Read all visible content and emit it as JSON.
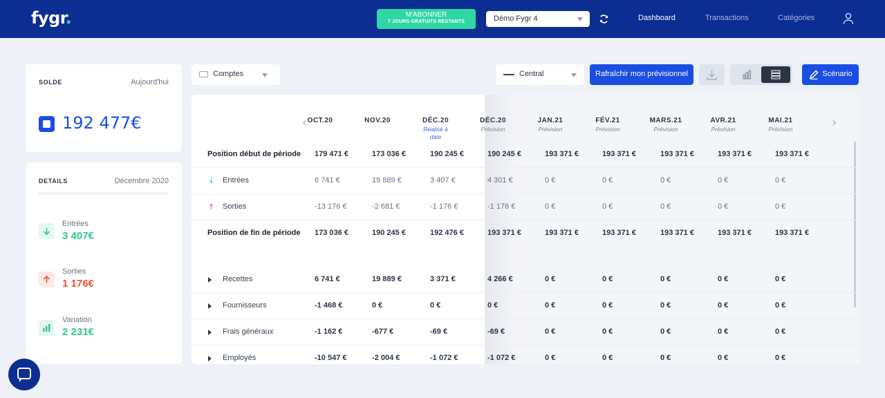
{
  "header": {
    "logo_text": "fygr",
    "logo_dot": ".",
    "subscribe_line1": "M'ABONNER",
    "subscribe_line2": "7 JOURS GRATUITS RESTANTS",
    "company": "Démo Fygr 4",
    "nav": [
      "Dashboard",
      "Transactions",
      "Catégories"
    ],
    "active_nav": "Dashboard",
    "brand_color": "#0c2e93",
    "accent_green": "#2fd7a5"
  },
  "solde": {
    "title": "SOLDE",
    "date": "Aujourd'hui",
    "value": "192 477€"
  },
  "details": {
    "title": "DETAILS",
    "period": "Décembre 2020",
    "metrics": [
      {
        "label": "Entrées",
        "value": "3 407€",
        "icon": "arrow-down-icon",
        "color": "#2fc98b"
      },
      {
        "label": "Sorties",
        "value": "1 176€",
        "icon": "arrow-up-icon",
        "color": "#f0533b"
      },
      {
        "label": "Variation",
        "value": "2 231€",
        "icon": "bar-chart-icon",
        "color": "#2fc98b"
      }
    ]
  },
  "toolbar": {
    "accounts_select": "Comptes",
    "scenario_select": "Central",
    "refresh_label": "Rafraîchir mon prévisionnel",
    "scenario_button": "Scénario",
    "active_view": "table"
  },
  "table": {
    "columns": [
      {
        "month": "OCT.20",
        "sub": ""
      },
      {
        "month": "NOV.20",
        "sub": ""
      },
      {
        "month": "DÉC.20",
        "sub": "Réalisé à date"
      },
      {
        "month": "DÉC.20",
        "sub": "Prévision"
      },
      {
        "month": "JAN.21",
        "sub": "Prévision"
      },
      {
        "month": "FÉV.21",
        "sub": "Prévision"
      },
      {
        "month": "MARS.21",
        "sub": "Prévision"
      },
      {
        "month": "AVR.21",
        "sub": "Prévision"
      },
      {
        "month": "MAI.21",
        "sub": "Prévision"
      }
    ],
    "rows": [
      {
        "label": "Position début de période",
        "style": "bold",
        "values": [
          "179 471 €",
          "173 036 €",
          "190 245 €",
          "190 245 €",
          "193 371 €",
          "193 371 €",
          "193 371 €",
          "193 371 €",
          "193 371 €"
        ]
      },
      {
        "label": "Entrées",
        "style": "in",
        "values": [
          "6 741 €",
          "19 889 €",
          "3 407 €",
          "4 301 €",
          "0 €",
          "0 €",
          "0 €",
          "0 €",
          "0 €"
        ]
      },
      {
        "label": "Sorties",
        "style": "out",
        "values": [
          "-13 176 €",
          "-2 681 €",
          "-1 176 €",
          "-1 176 €",
          "0 €",
          "0 €",
          "0 €",
          "0 €",
          "0 €"
        ]
      },
      {
        "label": "Position de fin de période",
        "style": "bold",
        "values": [
          "173 036 €",
          "190 245 €",
          "192 476 €",
          "193 371 €",
          "193 371 €",
          "193 371 €",
          "193 371 €",
          "193 371 €",
          "193 371 €"
        ]
      },
      {
        "label": "Recettes",
        "style": "cat",
        "values": [
          "6 741 €",
          "19 889 €",
          "3 371 €",
          "4 266 €",
          "0 €",
          "0 €",
          "0 €",
          "0 €",
          "0 €"
        ]
      },
      {
        "label": "Fournisseurs",
        "style": "cat",
        "values": [
          "-1 468 €",
          "0 €",
          "0 €",
          "0 €",
          "0 €",
          "0 €",
          "0 €",
          "0 €",
          "0 €"
        ]
      },
      {
        "label": "Frais généraux",
        "style": "cat",
        "values": [
          "-1 162 €",
          "-677 €",
          "-69 €",
          "-69 €",
          "0 €",
          "0 €",
          "0 €",
          "0 €",
          "0 €"
        ]
      },
      {
        "label": "Employés",
        "style": "cat",
        "values": [
          "-10 547 €",
          "-2 004 €",
          "-1 072 €",
          "-1 072 €",
          "0 €",
          "0 €",
          "0 €",
          "0 €",
          "0 €"
        ]
      }
    ]
  }
}
